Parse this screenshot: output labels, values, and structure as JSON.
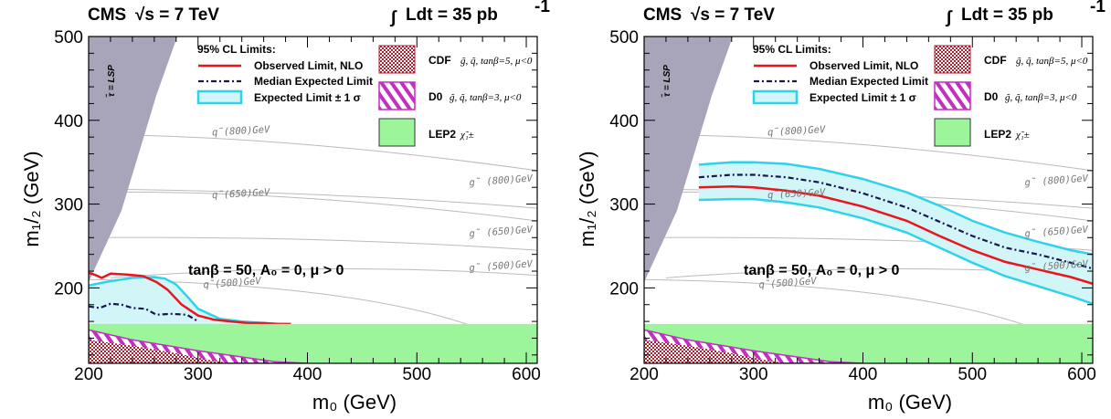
{
  "header": {
    "experiment": "CMS",
    "energy": "√s = 7 TeV",
    "integral_sign": "∫",
    "lumi_prefix": "Ldt = 35 pb",
    "lumi_exp": "-1"
  },
  "colors": {
    "observed": "#e8141e",
    "median_expected": "#161650",
    "expected_band_fill": "#d2f6f8",
    "expected_band_edge": "#2fd2ec",
    "lep2": "#9cf59a",
    "d0_hatch": "#c32ec3",
    "cdf": "#b01c2c",
    "stau_region": "#a8a5ba",
    "iso_lines": "#bbbbbb"
  },
  "legend": {
    "title": "95% CL  Limits:",
    "observed": "Observed Limit, NLO",
    "median": "Median Expected Limit",
    "expected": "Expected Limit ± 1 σ",
    "cdf_label": "CDF",
    "cdf_detail": "g̃, q̃, tanβ=5, μ<0",
    "d0_label": "D0",
    "d0_detail": "g̃, q̃, tanβ=3, μ<0",
    "lep2_label": "LEP2",
    "lep2_detail": "χ̃₁±"
  },
  "axes": {
    "xlabel": "m₀ (GeV)",
    "ylabel": "m₁/₂ (GeV)",
    "xlim": [
      200,
      610
    ],
    "ylim": [
      110,
      500
    ],
    "xticks": [
      "200",
      "300",
      "400",
      "500",
      "600"
    ],
    "yticks": [
      "200",
      "300",
      "400",
      "500"
    ]
  },
  "annotation": "tanβ = 50, A₀ = 0, μ > 0",
  "stau_label": "τ̃ = LSP",
  "iso_labels": {
    "sq800": "q̃(800)GeV",
    "sq650": "q̃(650)GeV",
    "sq500": "q̃(500)GeV",
    "gl800": "g̃ (800)GeV",
    "gl650": "g̃ (650)GeV",
    "gl500": "g̃ (500)GeV"
  },
  "chart_data": [
    {
      "type": "line",
      "panel": "left",
      "xlim": [
        200,
        610
      ],
      "ylim": [
        110,
        500
      ],
      "series": [
        {
          "name": "Observed Limit, NLO",
          "x": [
            200,
            205,
            212,
            220,
            235,
            250,
            262,
            272,
            285,
            300,
            315,
            330,
            345,
            360,
            372,
            385
          ],
          "y": [
            218,
            216,
            212,
            217,
            216,
            214,
            207,
            198,
            180,
            167,
            162,
            160,
            158,
            158,
            157,
            157
          ]
        },
        {
          "name": "Median Expected Limit",
          "x": [
            200,
            210,
            220,
            230,
            240,
            252,
            262,
            275,
            290,
            300
          ],
          "y": [
            178,
            176,
            181,
            180,
            176,
            175,
            168,
            169,
            168,
            160
          ]
        },
        {
          "name": "Expected Limit ± 1 σ (upper)",
          "x": [
            200,
            220,
            240,
            260,
            270,
            280,
            290,
            300,
            320,
            340,
            360,
            375
          ],
          "y": [
            203,
            208,
            212,
            213,
            211,
            204,
            190,
            175,
            163,
            160,
            158,
            157
          ]
        },
        {
          "name": "Expected Limit ± 1 σ (lower)",
          "x": [
            200,
            250,
            300,
            375
          ],
          "y": [
            157,
            157,
            157,
            157
          ]
        }
      ]
    },
    {
      "type": "line",
      "panel": "right",
      "xlim": [
        200,
        610
      ],
      "ylim": [
        110,
        500
      ],
      "series": [
        {
          "name": "Observed Limit, NLO",
          "x": [
            250,
            280,
            300,
            330,
            360,
            400,
            440,
            470,
            500,
            530,
            560,
            590,
            610
          ],
          "y": [
            320,
            321,
            320,
            316,
            310,
            297,
            280,
            262,
            245,
            231,
            222,
            213,
            205
          ]
        },
        {
          "name": "Median Expected Limit",
          "x": [
            250,
            280,
            300,
            330,
            360,
            400,
            440,
            470,
            500,
            530,
            560,
            590,
            610
          ],
          "y": [
            332,
            335,
            335,
            332,
            326,
            313,
            296,
            279,
            262,
            248,
            240,
            230,
            223
          ]
        },
        {
          "name": "Expected Limit ± 1 σ (upper)",
          "x": [
            250,
            280,
            300,
            330,
            360,
            400,
            440,
            470,
            500,
            530,
            560,
            590,
            610
          ],
          "y": [
            347,
            350,
            350,
            348,
            342,
            330,
            314,
            298,
            280,
            266,
            255,
            245,
            240
          ]
        },
        {
          "name": "Expected Limit ± 1 σ (lower)",
          "x": [
            250,
            280,
            300,
            330,
            360,
            400,
            440,
            470,
            500,
            530,
            560,
            590,
            610
          ],
          "y": [
            305,
            306,
            306,
            302,
            296,
            283,
            266,
            248,
            230,
            214,
            202,
            190,
            181
          ]
        }
      ]
    }
  ]
}
